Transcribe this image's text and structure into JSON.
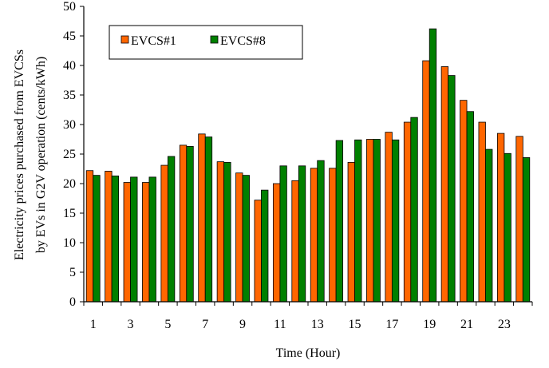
{
  "chart_data": {
    "type": "bar",
    "title": "",
    "xlabel": "Time (Hour)",
    "ylabel_lines": [
      "Electricity prices purchased from EVCSs",
      "by EVs in G2V  operation (cents/kWh)"
    ],
    "ylim": [
      0,
      50
    ],
    "y_ticks": [
      0,
      5,
      10,
      15,
      20,
      25,
      30,
      35,
      40,
      45,
      50
    ],
    "categories": [
      1,
      2,
      3,
      4,
      5,
      6,
      7,
      8,
      9,
      10,
      11,
      12,
      13,
      14,
      15,
      16,
      17,
      18,
      19,
      20,
      21,
      22,
      23,
      24
    ],
    "x_tick_labels": [
      "1",
      "3",
      "5",
      "7",
      "9",
      "11",
      "13",
      "15",
      "17",
      "19",
      "21",
      "23"
    ],
    "grid": false,
    "legend_position": "top-left",
    "series": [
      {
        "name": "EVCS#1",
        "color": "#FF6600",
        "values": [
          22.2,
          22.1,
          20.2,
          20.2,
          23.1,
          26.5,
          28.4,
          23.7,
          21.8,
          17.2,
          20.0,
          20.5,
          22.6,
          22.6,
          23.6,
          27.5,
          28.7,
          30.4,
          40.8,
          39.8,
          34.1,
          30.4,
          28.5,
          28.0
        ]
      },
      {
        "name": "EVCS#8",
        "color": "#008000",
        "values": [
          21.4,
          21.3,
          21.1,
          21.1,
          24.6,
          26.3,
          27.9,
          23.6,
          21.4,
          18.9,
          23.0,
          23.0,
          23.9,
          27.3,
          27.4,
          27.5,
          27.4,
          31.2,
          46.2,
          38.3,
          32.2,
          25.8,
          25.1,
          24.4
        ]
      }
    ]
  }
}
